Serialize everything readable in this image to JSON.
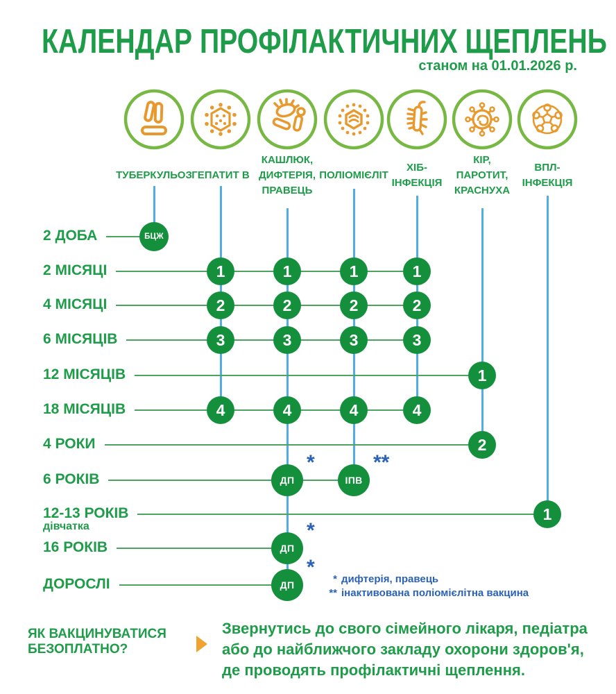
{
  "header": {
    "title": "КАЛЕНДАР ПРОФІЛАКТИЧНИХ ЩЕПЛЕНЬ",
    "date_note": "станом на 01.01.2026 р."
  },
  "columns": [
    {
      "id": "tuberculosis",
      "label": "ТУБЕРКУЛЬОЗ",
      "icon": "tuberculosis-bacteria-icon"
    },
    {
      "id": "hepatitis-b",
      "label": "ГЕПАТИТ В",
      "icon": "hepatitis-b-virus-icon"
    },
    {
      "id": "pertussis-diphtheria-tetanus",
      "label": "КАШЛЮК,\nДИФТЕРІЯ,\nПРАВЕЦЬ",
      "icon": "pertussis-bacteria-icon"
    },
    {
      "id": "polio",
      "label": "ПОЛІОМІЄЛІТ",
      "icon": "polio-virus-icon"
    },
    {
      "id": "hib",
      "label": "ХІБ-\nІНФЕКЦІЯ",
      "icon": "hib-bacteria-icon"
    },
    {
      "id": "measles-mumps-rubella",
      "label": "КІР,\nПАРОТИТ,\nКРАСНУХА",
      "icon": "measles-virus-icon"
    },
    {
      "id": "hpv",
      "label": "ВПЛ-\nІНФЕКЦІЯ",
      "icon": "hpv-virus-icon"
    }
  ],
  "rows": [
    {
      "age_label": "2 ДОБА",
      "badges": [
        {
          "col": 0,
          "text": "БЦЖ",
          "kind": "bcg"
        }
      ]
    },
    {
      "age_label": "2 МІСЯЦІ",
      "badges": [
        {
          "col": 1,
          "text": "1",
          "kind": "number"
        },
        {
          "col": 2,
          "text": "1",
          "kind": "number"
        },
        {
          "col": 3,
          "text": "1",
          "kind": "number"
        },
        {
          "col": 4,
          "text": "1",
          "kind": "number"
        }
      ]
    },
    {
      "age_label": "4 МІСЯЦІ",
      "badges": [
        {
          "col": 1,
          "text": "2",
          "kind": "number"
        },
        {
          "col": 2,
          "text": "2",
          "kind": "number"
        },
        {
          "col": 3,
          "text": "2",
          "kind": "number"
        },
        {
          "col": 4,
          "text": "2",
          "kind": "number"
        }
      ]
    },
    {
      "age_label": "6 МІСЯЦІВ",
      "badges": [
        {
          "col": 1,
          "text": "3",
          "kind": "number"
        },
        {
          "col": 2,
          "text": "3",
          "kind": "number"
        },
        {
          "col": 3,
          "text": "3",
          "kind": "number"
        },
        {
          "col": 4,
          "text": "3",
          "kind": "number"
        }
      ]
    },
    {
      "age_label": "12 МІСЯЦІВ",
      "badges": [
        {
          "col": 5,
          "text": "1",
          "kind": "number"
        }
      ]
    },
    {
      "age_label": "18 МІСЯЦІВ",
      "badges": [
        {
          "col": 1,
          "text": "4",
          "kind": "number"
        },
        {
          "col": 2,
          "text": "4",
          "kind": "number"
        },
        {
          "col": 3,
          "text": "4",
          "kind": "number"
        },
        {
          "col": 4,
          "text": "4",
          "kind": "number"
        }
      ]
    },
    {
      "age_label": "4 РОКИ",
      "badges": [
        {
          "col": 5,
          "text": "2",
          "kind": "number"
        }
      ]
    },
    {
      "age_label": "6 РОКІВ",
      "badges": [
        {
          "col": 2,
          "text": "ДП",
          "kind": "abbr",
          "footnote": "*"
        },
        {
          "col": 3,
          "text": "ІПВ",
          "kind": "abbr",
          "footnote": "**"
        }
      ]
    },
    {
      "age_label": "12-13 РОКІВ",
      "sublabel": "дівчатка",
      "badges": [
        {
          "col": 6,
          "text": "1",
          "kind": "number"
        }
      ]
    },
    {
      "age_label": "16 РОКІВ",
      "badges": [
        {
          "col": 2,
          "text": "ДП",
          "kind": "abbr",
          "footnote": "*"
        }
      ]
    },
    {
      "age_label": "ДОРОСЛІ",
      "badges": [
        {
          "col": 2,
          "text": "ДП",
          "kind": "abbr",
          "footnote": "*"
        }
      ]
    }
  ],
  "footnotes": [
    {
      "marker": "*",
      "text": "дифтерія, правець"
    },
    {
      "marker": "**",
      "text": "інактивована поліомієлітна вакцина"
    }
  ],
  "cta": {
    "question_lines": [
      "ЯК ВАКЦИНУВАТИСЯ",
      "БЕЗОПЛАТНО?"
    ],
    "answer": "Звернутись до свого сімейного лікаря, педіатра або до найближчого закладу охорони здоров'я, де проводять профілактичні щеплення."
  },
  "colors": {
    "green_text": "#1E9C49",
    "badge_green": "#14903C",
    "circle_green": "#77B843",
    "icon_orange": "#E8992E",
    "line_blue": "#52AEE2",
    "line_green": "#4BA35F",
    "note_blue": "#2B61B8",
    "arrow_orange": "#F0A330"
  }
}
